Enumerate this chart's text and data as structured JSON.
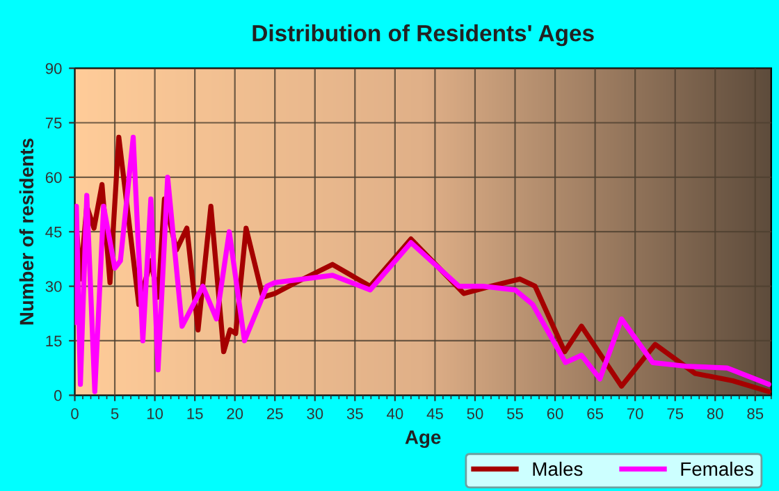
{
  "chart_data": {
    "type": "line",
    "title": "Distribution of Residents' Ages",
    "xlabel": "Age",
    "ylabel": "Number of residents",
    "xlim": [
      0,
      87
    ],
    "xticks": [
      0,
      5,
      10,
      15,
      20,
      25,
      30,
      35,
      40,
      45,
      50,
      55,
      60,
      65,
      70,
      75,
      80,
      85
    ],
    "ylim": [
      0,
      90
    ],
    "yticks": [
      0,
      15,
      30,
      45,
      60,
      75,
      90
    ],
    "grid": true,
    "legend": "bottom",
    "series": [
      {
        "name": "Males",
        "color": "#a50000",
        "x": [
          0,
          0.7,
          1.5,
          2.4,
          3.4,
          4.4,
          5.5,
          8,
          9.5,
          10.4,
          11.2,
          12.7,
          14,
          15.4,
          17,
          18.6,
          19.4,
          20.1,
          21.4,
          23.5,
          25,
          27.6,
          32.2,
          36.9,
          42,
          48.6,
          52,
          55.6,
          57.5,
          61.2,
          63.3,
          68.3,
          72.5,
          77.5,
          82.2,
          86.7
        ],
        "values": [
          52,
          32,
          52,
          46,
          58,
          31,
          71,
          25,
          37,
          27,
          54,
          40,
          46,
          18,
          52,
          12,
          18,
          17,
          46,
          27,
          28,
          31,
          36,
          30,
          43,
          28,
          30,
          32,
          30,
          12,
          19,
          2.5,
          14,
          6,
          4,
          1
        ]
      },
      {
        "name": "Females",
        "color": "#ff00ff",
        "x": [
          0,
          0.2,
          0.7,
          1.5,
          2.5,
          3.6,
          5,
          5.7,
          7.3,
          8.5,
          9.5,
          10.4,
          11.6,
          13.4,
          16,
          17.7,
          19.3,
          21.2,
          24,
          25,
          32.2,
          36.9,
          42,
          48,
          51,
          55,
          57.2,
          61.3,
          63.3,
          65.6,
          68.3,
          72.2,
          76.3,
          81.5,
          86.7
        ],
        "values": [
          20,
          52,
          3,
          55,
          1,
          52,
          35,
          37,
          71,
          15,
          54,
          7,
          60,
          19,
          30,
          21,
          45,
          15,
          30,
          31,
          33,
          29,
          42,
          30,
          30,
          29,
          25,
          9,
          11,
          4.5,
          21,
          9,
          8,
          7.5,
          3
        ]
      }
    ]
  }
}
